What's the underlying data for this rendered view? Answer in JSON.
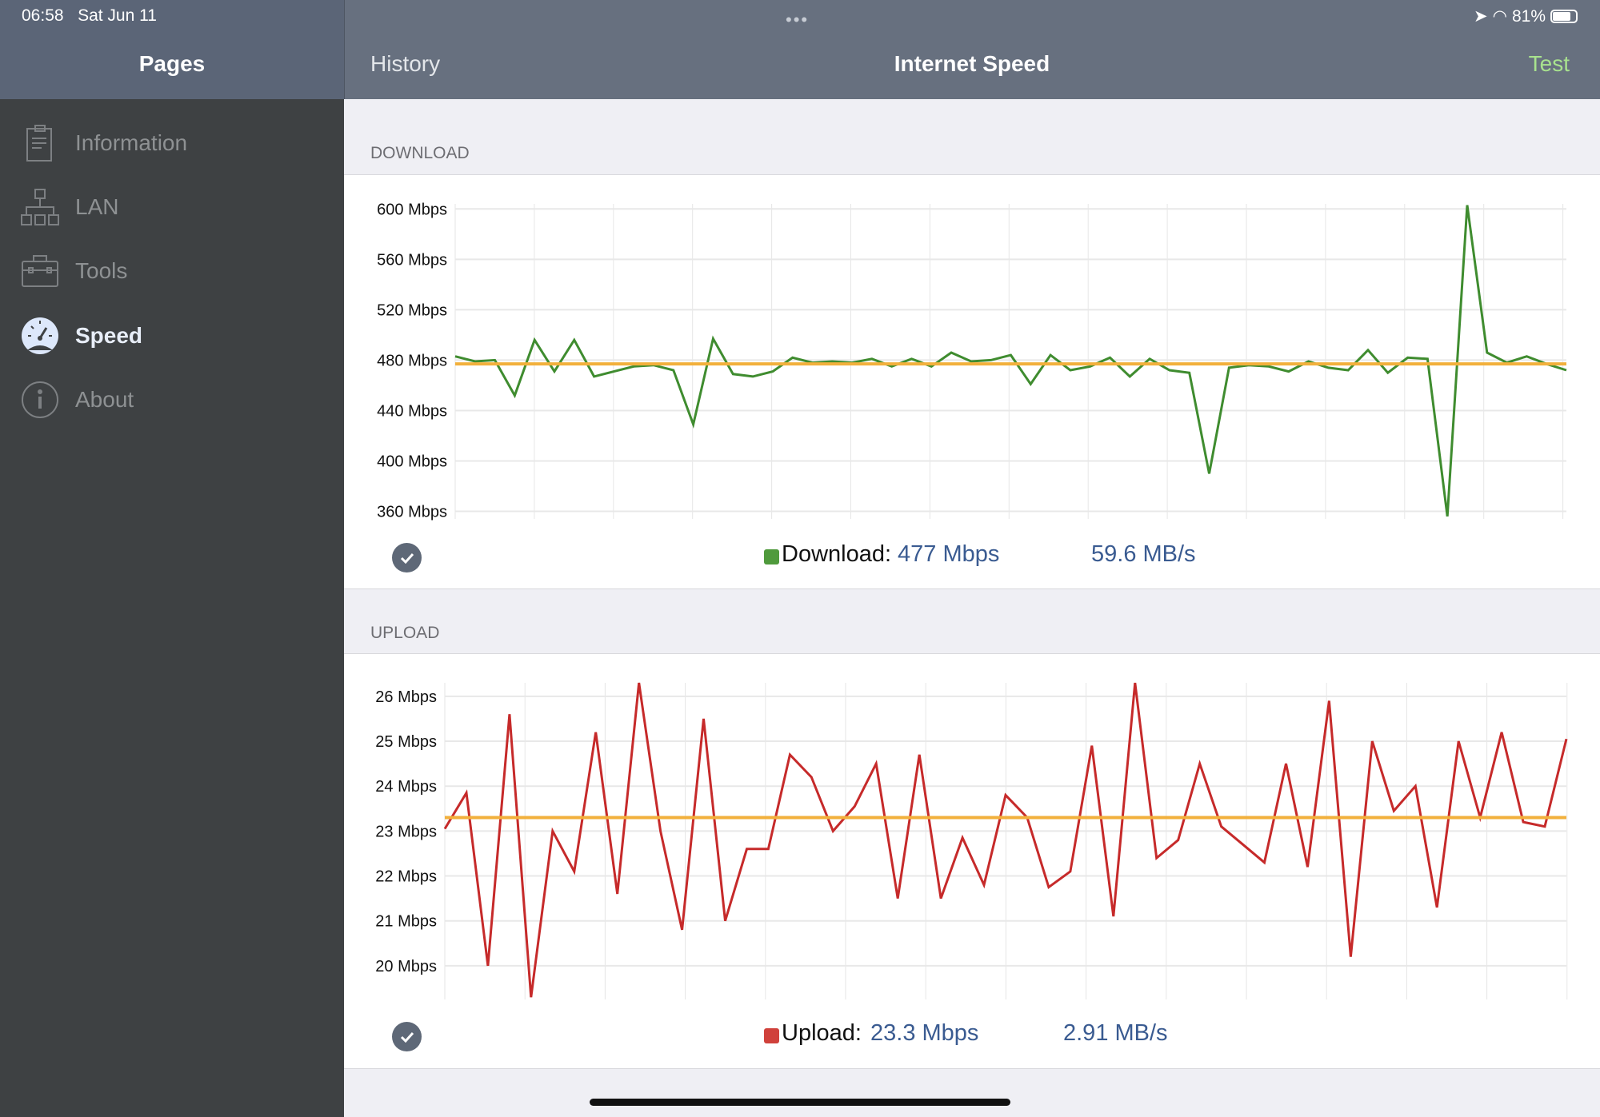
{
  "status_bar": {
    "time": "06:58",
    "date": "Sat Jun 11",
    "battery": "81%"
  },
  "sidebar": {
    "title": "Pages",
    "items": [
      {
        "label": "Information",
        "icon": "clipboard-icon",
        "selected": false
      },
      {
        "label": "LAN",
        "icon": "network-icon",
        "selected": false
      },
      {
        "label": "Tools",
        "icon": "toolbox-icon",
        "selected": false
      },
      {
        "label": "Speed",
        "icon": "speedometer-icon",
        "selected": true
      },
      {
        "label": "About",
        "icon": "info-icon",
        "selected": false
      }
    ]
  },
  "nav": {
    "history_label": "History",
    "title": "Internet Speed",
    "test_label": "Test"
  },
  "download": {
    "header": "DOWNLOAD",
    "legend_label": "Download:",
    "mbps": "477 Mbps",
    "mbs": "59.6 MB/s"
  },
  "upload": {
    "header": "UPLOAD",
    "legend_label": "Upload:",
    "mbps": "23.3 Mbps",
    "mbs": "2.91 MB/s"
  },
  "colors": {
    "download": "#3f8c2f",
    "upload": "#c62a2a",
    "average": "#f2b03c",
    "accent": "#a8e28e"
  },
  "chart_data": [
    {
      "type": "line",
      "ylim": [
        354,
        604
      ],
      "yticks": [
        600,
        560,
        520,
        480,
        440,
        400,
        360
      ],
      "tick_labels": [
        "600 Mbps",
        "560 Mbps",
        "520 Mbps",
        "480 Mbps",
        "440 Mbps",
        "400 Mbps",
        "360 Mbps"
      ],
      "grid": true,
      "average": 477,
      "values": [
        483,
        479,
        480,
        452,
        496,
        471,
        496,
        467,
        471,
        475,
        476,
        472,
        429,
        497,
        469,
        467,
        471,
        482,
        478,
        479,
        478,
        481,
        475,
        481,
        475,
        486,
        479,
        480,
        484,
        461,
        484,
        472,
        475,
        482,
        467,
        481,
        472,
        470,
        390,
        474,
        476,
        475,
        471,
        479,
        474,
        472,
        488,
        470,
        482,
        481,
        356,
        603,
        486,
        478,
        483,
        477,
        472
      ]
    },
    {
      "type": "line",
      "ylim": [
        19.25,
        26.3
      ],
      "yticks": [
        26,
        25,
        24,
        23,
        22,
        21,
        20
      ],
      "tick_labels": [
        "26 Mbps",
        "25 Mbps",
        "24 Mbps",
        "23 Mbps",
        "22 Mbps",
        "21 Mbps",
        "20 Mbps"
      ],
      "grid": true,
      "average": 23.3,
      "values": [
        23.05,
        23.85,
        20.0,
        25.6,
        19.3,
        23.0,
        22.1,
        25.2,
        21.6,
        26.3,
        23.0,
        20.8,
        25.5,
        21.0,
        22.6,
        22.6,
        24.7,
        24.2,
        23.0,
        23.55,
        24.5,
        21.5,
        24.7,
        21.5,
        22.85,
        21.8,
        23.8,
        23.3,
        21.75,
        22.1,
        24.9,
        21.1,
        26.3,
        22.4,
        22.8,
        24.5,
        23.1,
        22.7,
        22.3,
        24.5,
        22.2,
        25.9,
        20.2,
        25.0,
        23.45,
        24.0,
        21.3,
        25.0,
        23.3,
        25.2,
        23.2,
        23.1,
        25.05
      ]
    }
  ]
}
